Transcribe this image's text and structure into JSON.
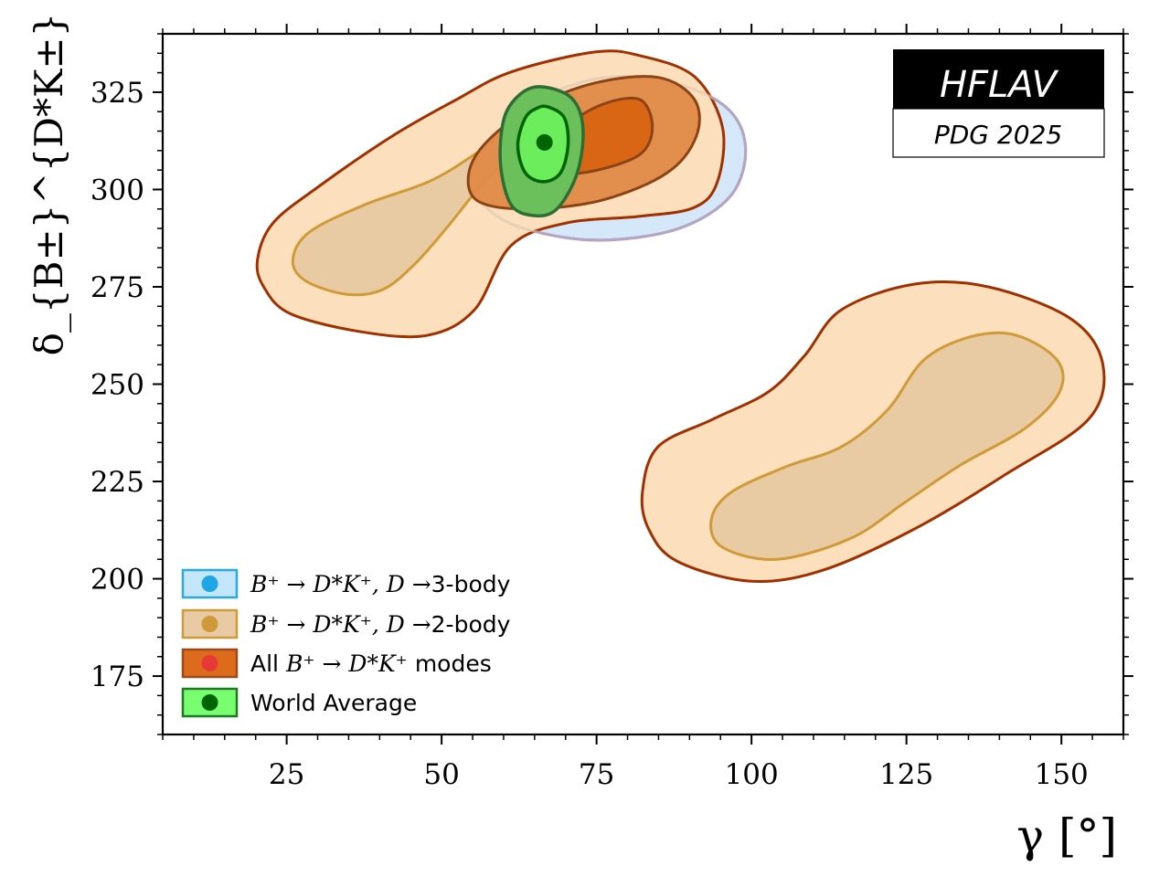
{
  "chart_data": {
    "type": "contour",
    "xlabel": "γ [°]",
    "ylabel": "δ_{B±}^{D*K±} [°]",
    "xlim": [
      5,
      160
    ],
    "ylim": [
      160,
      340
    ],
    "xticks": [
      25,
      50,
      75,
      100,
      125,
      150
    ],
    "yticks": [
      175,
      200,
      225,
      250,
      275,
      300,
      325
    ],
    "xtick_labels": [
      "25",
      "50",
      "75",
      "100",
      "125",
      "150"
    ],
    "ytick_labels": [
      "175",
      "200",
      "225",
      "250",
      "275",
      "300",
      "325"
    ],
    "x_minor_step": 5,
    "y_minor_step": 5,
    "grid": false,
    "legend_position": "bottom-left",
    "badge": {
      "title": "HFLAV",
      "subtitle": "PDG 2025"
    },
    "series": [
      {
        "name": "B+ → D*K+, D →3-body",
        "legend_math": "B⁺ → D*K⁺, D →",
        "legend_suffix": "3-body",
        "fill": "#d4e8fa",
        "stroke": "#5555dd",
        "marker": "#1ea6e6",
        "legend_fill": "#c4e6fa",
        "legend_stroke": "#2aa9e0",
        "contours": [
          {
            "level": "2sigma",
            "points": [
              [
                56.1,
                302.0
              ],
              [
                61.2,
                318.4
              ],
              [
                73.1,
                327.8
              ],
              [
                84.9,
                328.3
              ],
              [
                95.3,
                321.9
              ],
              [
                99.0,
                311.4
              ],
              [
                96.7,
                298.5
              ],
              [
                87.9,
                289.8
              ],
              [
                74.6,
                287.0
              ],
              [
                62.7,
                290.3
              ],
              [
                56.8,
                296.1
              ]
            ]
          }
        ]
      },
      {
        "name": "B+ → D*K+, D →2-body",
        "legend_math": "B⁺ → D*K⁺, D →",
        "legend_suffix": "2-body",
        "fill": "#e8cba2",
        "stroke": "#d09a38",
        "marker": "#d09a38",
        "legend_fill": "#e8cba4",
        "legend_stroke": "#d09a38",
        "contours": [
          {
            "level": "1sigma-a",
            "points": [
              [
                26.0,
                282.0
              ],
              [
                28.7,
                289.1
              ],
              [
                37.6,
                296.1
              ],
              [
                47.9,
                302.0
              ],
              [
                55.3,
                309.0
              ],
              [
                61.2,
                316.1
              ],
              [
                64.9,
                321.2
              ],
              [
                61.2,
                309.0
              ],
              [
                56.8,
                302.0
              ],
              [
                50.9,
                290.3
              ],
              [
                45.7,
                280.9
              ],
              [
                40.5,
                274.3
              ],
              [
                34.6,
                273.1
              ],
              [
                28.0,
                276.6
              ]
            ]
          },
          {
            "level": "1sigma-b",
            "points": [
              [
                93.5,
                215.1
              ],
              [
                96.7,
                222.2
              ],
              [
                105.6,
                228.8
              ],
              [
                114.5,
                233.9
              ],
              [
                121.9,
                243.3
              ],
              [
                127.8,
                256.2
              ],
              [
                135.2,
                262.1
              ],
              [
                142.6,
                262.6
              ],
              [
                149.3,
                256.2
              ],
              [
                149.7,
                248.0
              ],
              [
                144.1,
                238.6
              ],
              [
                133.7,
                229.2
              ],
              [
                124.9,
                219.8
              ],
              [
                116.0,
                210.4
              ],
              [
                104.1,
                205.0
              ],
              [
                95.3,
                208.1
              ]
            ]
          }
        ]
      },
      {
        "name": "All B+ → D*K+ modes",
        "legend_prefix": "All",
        "legend_math": "B⁺ → D*K⁺",
        "legend_suffix": "modes",
        "fill_outer": "#fce0bd",
        "fill_mid": "#e08a48",
        "fill_inner": "#d96614",
        "stroke_outer": "#a03000",
        "stroke_inner": "#8c4316",
        "marker": "#e83838",
        "legend_fill": "#dc6c1c",
        "legend_stroke": "#9a4a1e",
        "contours": [
          {
            "level": "2sigma-a",
            "points": [
              [
                20.3,
                282.0
              ],
              [
                22.8,
                291.4
              ],
              [
                30.2,
                300.8
              ],
              [
                42.0,
                313.7
              ],
              [
                52.4,
                323.1
              ],
              [
                61.2,
                330.2
              ],
              [
                74.6,
                335.3
              ],
              [
                82.0,
                334.4
              ],
              [
                90.8,
                329.0
              ],
              [
                95.3,
                316.1
              ],
              [
                94.5,
                302.0
              ],
              [
                90.8,
                295.4
              ],
              [
                82.0,
                293.1
              ],
              [
                70.1,
                291.4
              ],
              [
                61.2,
                285.6
              ],
              [
                55.3,
                269.1
              ],
              [
                47.9,
                262.6
              ],
              [
                37.6,
                263.3
              ],
              [
                25.7,
                268.0
              ],
              [
                21.3,
                275.0
              ]
            ]
          },
          {
            "level": "2sigma-b",
            "points": [
              [
                82.4,
                222.2
              ],
              [
                84.9,
                233.9
              ],
              [
                93.8,
                241.0
              ],
              [
                102.7,
                248.0
              ],
              [
                108.6,
                257.4
              ],
              [
                114.5,
                269.1
              ],
              [
                126.3,
                275.7
              ],
              [
                138.2,
                275.0
              ],
              [
                151.5,
                266.8
              ],
              [
                156.7,
                255.0
              ],
              [
                154.4,
                241.0
              ],
              [
                141.1,
                226.9
              ],
              [
                126.3,
                212.8
              ],
              [
                111.5,
                202.2
              ],
              [
                99.7,
                199.4
              ],
              [
                87.9,
                204.6
              ],
              [
                83.4,
                212.8
              ]
            ]
          },
          {
            "level": "1sigma",
            "points": [
              [
                54.3,
                303.2
              ],
              [
                56.8,
                311.4
              ],
              [
                64.2,
                320.8
              ],
              [
                74.6,
                327.3
              ],
              [
                84.9,
                328.8
              ],
              [
                90.8,
                323.1
              ],
              [
                91.1,
                313.7
              ],
              [
                86.4,
                304.3
              ],
              [
                76.0,
                297.3
              ],
              [
                64.2,
                295.0
              ],
              [
                56.1,
                296.8
              ]
            ]
          },
          {
            "level": "0.5sigma",
            "points": [
              [
                67.2,
                307.9
              ],
              [
                70.1,
                316.1
              ],
              [
                76.0,
                321.9
              ],
              [
                82.0,
                323.1
              ],
              [
                84.0,
                316.1
              ],
              [
                82.0,
                309.0
              ],
              [
                74.6,
                304.8
              ],
              [
                68.6,
                304.3
              ]
            ]
          }
        ]
      },
      {
        "name": "World Average",
        "legend_prefix": "World Average",
        "fill_outer": "#6cc05c",
        "fill_inner": "#6cee5c",
        "stroke_outer": "#2e6e34",
        "stroke_inner": "#006400",
        "marker": "#006400",
        "legend_fill": "#78ff70",
        "legend_stroke": "#1e7a1e",
        "best_fit": [
          66.6,
          312.1
        ],
        "contours": [
          {
            "level": "2sigma",
            "points": [
              [
                66.1,
                326.4
              ],
              [
                70.9,
                323.6
              ],
              [
                72.8,
                316.1
              ],
              [
                71.9,
                304.3
              ],
              [
                68.6,
                295.0
              ],
              [
                64.9,
                293.3
              ],
              [
                61.2,
                296.1
              ],
              [
                59.5,
                306.7
              ],
              [
                60.1,
                318.4
              ],
              [
                62.7,
                324.5
              ]
            ]
          },
          {
            "level": "1sigma",
            "points": [
              [
                67.2,
                321.2
              ],
              [
                69.8,
                318.4
              ],
              [
                70.4,
                311.4
              ],
              [
                69.2,
                304.3
              ],
              [
                66.4,
                302.0
              ],
              [
                63.5,
                304.3
              ],
              [
                62.3,
                311.4
              ],
              [
                63.5,
                318.4
              ],
              [
                65.4,
                320.9
              ]
            ]
          }
        ]
      }
    ]
  }
}
